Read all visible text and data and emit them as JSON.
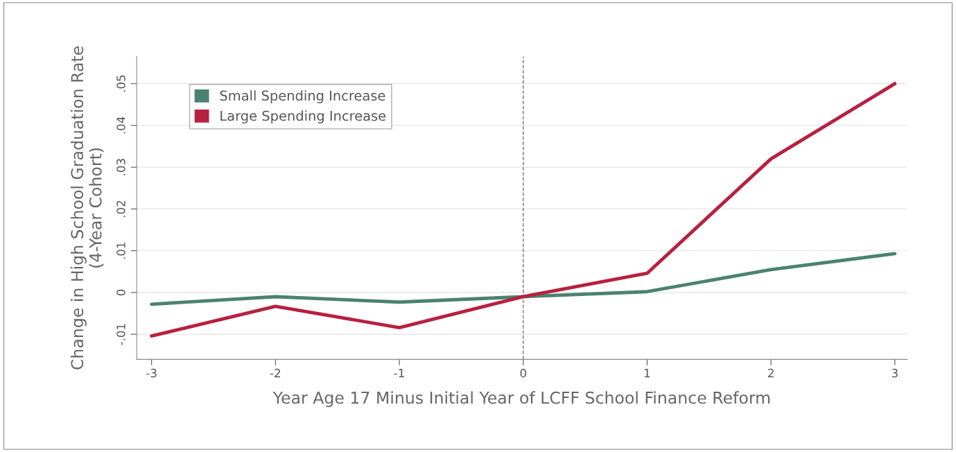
{
  "chart_data": {
    "type": "line",
    "xlabel": "Year Age 17 Minus Initial Year of LCFF School Finance Reform",
    "ylabel": "Change in High School Graduation Rate\n(4-Year Cohort)",
    "x": [
      -3,
      -2,
      -1,
      0,
      1,
      2,
      3
    ],
    "series": [
      {
        "name": "Small Spending Increase",
        "color": "#4a8270",
        "values": [
          -0.0028,
          -0.001,
          -0.0023,
          -0.001,
          0.0002,
          0.0055,
          0.0093
        ]
      },
      {
        "name": "Large Spending Increase",
        "color": "#b8203f",
        "values": [
          -0.0104,
          -0.0033,
          -0.0084,
          -0.001,
          0.0046,
          0.032,
          0.05
        ]
      }
    ],
    "xlim": [
      -3.12,
      3.1
    ],
    "ylim": [
      -0.016,
      0.0565
    ],
    "xticks": [
      -3,
      -2,
      -1,
      0,
      1,
      2,
      3
    ],
    "yticks": [
      {
        "value": -0.01,
        "label": "-.01"
      },
      {
        "value": 0,
        "label": "0"
      },
      {
        "value": 0.01,
        "label": ".01"
      },
      {
        "value": 0.02,
        "label": ".02"
      },
      {
        "value": 0.03,
        "label": ".03"
      },
      {
        "value": 0.04,
        "label": ".04"
      },
      {
        "value": 0.05,
        "label": ".05"
      }
    ],
    "ref_lines": [
      {
        "axis": "x",
        "value": 0,
        "color": "#777777",
        "line_style": "dashed"
      }
    ],
    "grid": "y",
    "legend": "top left",
    "marker": "none",
    "line_style": "solid"
  }
}
